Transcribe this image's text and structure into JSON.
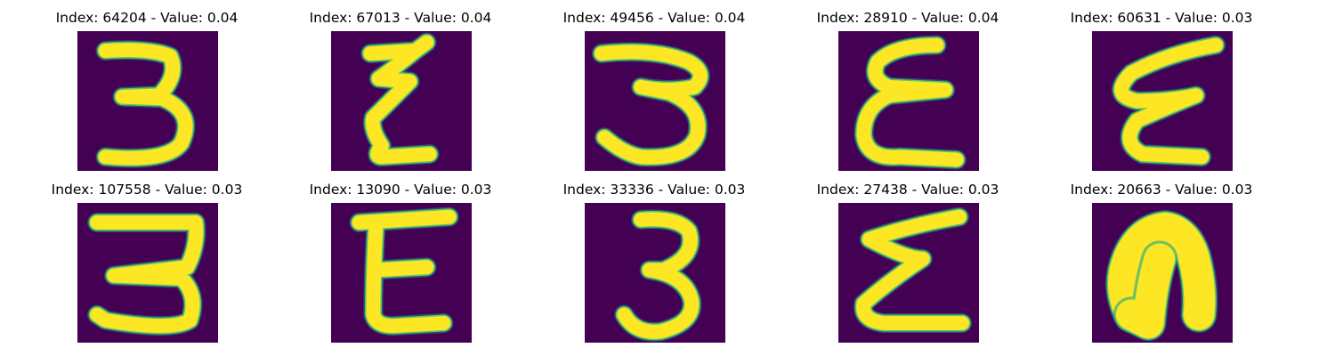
{
  "colors": {
    "background": "#440154",
    "stroke": "#fde725",
    "edge": "#5ec962",
    "edge_dark": "#21918c"
  },
  "panels": [
    {
      "title": "Index: 64204 - Value: 0.04"
    },
    {
      "title": "Index: 67013 - Value: 0.04"
    },
    {
      "title": "Index: 49456 - Value: 0.04"
    },
    {
      "title": "Index: 28910 - Value: 0.04"
    },
    {
      "title": "Index: 60631 - Value: 0.03"
    },
    {
      "title": "Index: 107558 - Value: 0.03"
    },
    {
      "title": "Index: 13090 - Value: 0.03"
    },
    {
      "title": "Index: 33336 - Value: 0.03"
    },
    {
      "title": "Index: 27438 - Value: 0.03"
    },
    {
      "title": "Index: 20663 - Value: 0.03"
    }
  ]
}
